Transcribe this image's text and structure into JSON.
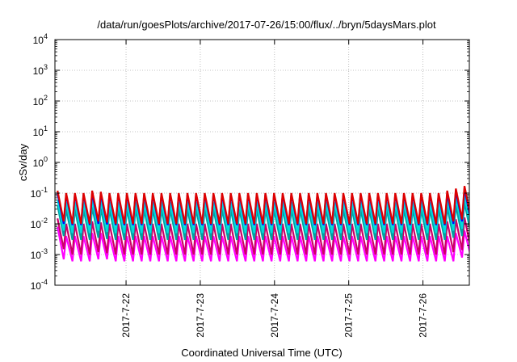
{
  "chart_data": {
    "type": "line",
    "title": "/data/run/goesPlots/archive/2017-07-26/15:00/flux/../bryn/5daysMars.plot",
    "xlabel": "Coordinated Universal Time (UTC)",
    "ylabel": "cSv/day",
    "yscale": "log",
    "ylim": [
      0.0001,
      10000
    ],
    "yticks": [
      {
        "base": "10",
        "exp": "-4"
      },
      {
        "base": "10",
        "exp": "-3"
      },
      {
        "base": "10",
        "exp": "-2"
      },
      {
        "base": "10",
        "exp": "-1"
      },
      {
        "base": "10",
        "exp": "0"
      },
      {
        "base": "10",
        "exp": "1"
      },
      {
        "base": "10",
        "exp": "2"
      },
      {
        "base": "10",
        "exp": "3"
      },
      {
        "base": "10",
        "exp": "4"
      }
    ],
    "xlim": [
      "2017-07-21T01:00",
      "2017-07-26T15:00"
    ],
    "xticks": [
      "2017-7-22",
      "2017-7-23",
      "2017-7-24",
      "2017-7-25",
      "2017-7-26"
    ],
    "grid": true,
    "cycle_hours": 2.8,
    "series": [
      {
        "color": "#ff00ff",
        "peaks": [
          0.008,
          0.004,
          0.004,
          0.004,
          0.005,
          0.005,
          0.004,
          0.004,
          0.004,
          0.004,
          0.004,
          0.004,
          0.004,
          0.004,
          0.004,
          0.004,
          0.004,
          0.004,
          0.004,
          0.004,
          0.004,
          0.004,
          0.004,
          0.004,
          0.004,
          0.004,
          0.004,
          0.004,
          0.004,
          0.004,
          0.004,
          0.004,
          0.004,
          0.004,
          0.004,
          0.004,
          0.004,
          0.004,
          0.004,
          0.004,
          0.004,
          0.004,
          0.004,
          0.004,
          0.004,
          0.004,
          0.005,
          0.006,
          0.006,
          0.005
        ],
        "troughs": [
          0.0007,
          0.0006,
          0.0006,
          0.0006,
          0.0007,
          0.0007,
          0.0006,
          0.0006,
          0.0006,
          0.0006,
          0.0006,
          0.0006,
          0.0006,
          0.0006,
          0.0006,
          0.0006,
          0.0006,
          0.0006,
          0.0006,
          0.0006,
          0.0006,
          0.0006,
          0.0006,
          0.0006,
          0.0006,
          0.0006,
          0.0006,
          0.0006,
          0.0006,
          0.0006,
          0.0006,
          0.0006,
          0.0006,
          0.0006,
          0.0006,
          0.0006,
          0.0006,
          0.0006,
          0.0006,
          0.0006,
          0.0006,
          0.0006,
          0.0006,
          0.0006,
          0.0006,
          0.0006,
          0.0008,
          0.0009,
          0.0009,
          0.0008
        ]
      },
      {
        "color": "#cc0066",
        "peaks": [
          0.015,
          0.01,
          0.01,
          0.01,
          0.012,
          0.011,
          0.01,
          0.01,
          0.01,
          0.01,
          0.01,
          0.01,
          0.01,
          0.01,
          0.01,
          0.01,
          0.01,
          0.01,
          0.01,
          0.01,
          0.01,
          0.01,
          0.01,
          0.01,
          0.01,
          0.01,
          0.01,
          0.01,
          0.01,
          0.01,
          0.01,
          0.01,
          0.01,
          0.01,
          0.01,
          0.01,
          0.01,
          0.01,
          0.01,
          0.01,
          0.01,
          0.01,
          0.01,
          0.01,
          0.01,
          0.012,
          0.014,
          0.016,
          0.015,
          0.012
        ],
        "troughs": [
          0.0015,
          0.001,
          0.001,
          0.001,
          0.0012,
          0.0011,
          0.001,
          0.001,
          0.001,
          0.001,
          0.001,
          0.001,
          0.001,
          0.001,
          0.001,
          0.001,
          0.001,
          0.001,
          0.001,
          0.001,
          0.001,
          0.001,
          0.001,
          0.001,
          0.001,
          0.001,
          0.001,
          0.001,
          0.001,
          0.001,
          0.001,
          0.001,
          0.001,
          0.001,
          0.001,
          0.001,
          0.001,
          0.001,
          0.001,
          0.001,
          0.001,
          0.001,
          0.001,
          0.001,
          0.001,
          0.0012,
          0.0014,
          0.0016,
          0.0015,
          0.0012
        ]
      },
      {
        "color": "#00a0a0",
        "peaks": [
          0.04,
          0.03,
          0.03,
          0.03,
          0.035,
          0.032,
          0.03,
          0.03,
          0.03,
          0.03,
          0.03,
          0.03,
          0.03,
          0.03,
          0.03,
          0.03,
          0.03,
          0.03,
          0.03,
          0.03,
          0.03,
          0.03,
          0.03,
          0.03,
          0.03,
          0.03,
          0.03,
          0.03,
          0.03,
          0.03,
          0.03,
          0.03,
          0.03,
          0.03,
          0.03,
          0.03,
          0.03,
          0.03,
          0.03,
          0.03,
          0.03,
          0.03,
          0.03,
          0.03,
          0.03,
          0.035,
          0.04,
          0.05,
          0.045,
          0.035
        ],
        "troughs": [
          0.004,
          0.003,
          0.003,
          0.003,
          0.0035,
          0.0032,
          0.003,
          0.003,
          0.003,
          0.003,
          0.003,
          0.003,
          0.003,
          0.003,
          0.003,
          0.003,
          0.003,
          0.003,
          0.003,
          0.003,
          0.003,
          0.003,
          0.003,
          0.003,
          0.003,
          0.003,
          0.003,
          0.003,
          0.003,
          0.003,
          0.003,
          0.003,
          0.003,
          0.003,
          0.003,
          0.003,
          0.003,
          0.003,
          0.003,
          0.003,
          0.003,
          0.003,
          0.003,
          0.003,
          0.003,
          0.0035,
          0.004,
          0.005,
          0.0045,
          0.0035
        ]
      },
      {
        "color": "#00dddd",
        "peaks": [
          0.06,
          0.05,
          0.05,
          0.05,
          0.06,
          0.055,
          0.05,
          0.05,
          0.05,
          0.05,
          0.05,
          0.05,
          0.05,
          0.05,
          0.05,
          0.05,
          0.05,
          0.05,
          0.05,
          0.05,
          0.05,
          0.05,
          0.05,
          0.05,
          0.05,
          0.05,
          0.05,
          0.05,
          0.05,
          0.05,
          0.05,
          0.05,
          0.05,
          0.05,
          0.05,
          0.05,
          0.05,
          0.05,
          0.05,
          0.05,
          0.05,
          0.05,
          0.05,
          0.05,
          0.05,
          0.06,
          0.07,
          0.08,
          0.075,
          0.06
        ],
        "troughs": [
          0.006,
          0.005,
          0.005,
          0.005,
          0.006,
          0.0055,
          0.005,
          0.005,
          0.005,
          0.005,
          0.005,
          0.005,
          0.005,
          0.005,
          0.005,
          0.005,
          0.005,
          0.005,
          0.005,
          0.005,
          0.005,
          0.005,
          0.005,
          0.005,
          0.005,
          0.005,
          0.005,
          0.005,
          0.005,
          0.005,
          0.005,
          0.005,
          0.005,
          0.005,
          0.005,
          0.005,
          0.005,
          0.005,
          0.005,
          0.005,
          0.005,
          0.005,
          0.005,
          0.005,
          0.005,
          0.006,
          0.007,
          0.008,
          0.0075,
          0.006
        ]
      },
      {
        "color": "#0000ff",
        "peaks": [
          0.1,
          0.09,
          0.09,
          0.09,
          0.1,
          0.095,
          0.09,
          0.09,
          0.09,
          0.09,
          0.09,
          0.09,
          0.09,
          0.09,
          0.09,
          0.09,
          0.09,
          0.09,
          0.09,
          0.09,
          0.09,
          0.09,
          0.09,
          0.09,
          0.09,
          0.09,
          0.09,
          0.09,
          0.09,
          0.09,
          0.09,
          0.09,
          0.09,
          0.09,
          0.09,
          0.09,
          0.09,
          0.09,
          0.09,
          0.09,
          0.09,
          0.09,
          0.09,
          0.09,
          0.09,
          0.1,
          0.12,
          0.14,
          0.13,
          0.1
        ],
        "troughs": [
          0.01,
          0.009,
          0.009,
          0.009,
          0.01,
          0.0095,
          0.009,
          0.009,
          0.009,
          0.009,
          0.009,
          0.009,
          0.009,
          0.009,
          0.009,
          0.009,
          0.009,
          0.009,
          0.009,
          0.009,
          0.009,
          0.009,
          0.009,
          0.009,
          0.009,
          0.009,
          0.009,
          0.009,
          0.009,
          0.009,
          0.009,
          0.009,
          0.009,
          0.009,
          0.009,
          0.009,
          0.009,
          0.009,
          0.009,
          0.009,
          0.009,
          0.009,
          0.009,
          0.009,
          0.009,
          0.01,
          0.012,
          0.014,
          0.013,
          0.01
        ]
      },
      {
        "color": "#dd0000",
        "peaks": [
          0.12,
          0.1,
          0.1,
          0.1,
          0.12,
          0.11,
          0.1,
          0.1,
          0.1,
          0.1,
          0.1,
          0.1,
          0.1,
          0.1,
          0.1,
          0.1,
          0.1,
          0.1,
          0.1,
          0.1,
          0.1,
          0.1,
          0.1,
          0.1,
          0.1,
          0.1,
          0.1,
          0.1,
          0.1,
          0.1,
          0.1,
          0.1,
          0.1,
          0.1,
          0.1,
          0.1,
          0.1,
          0.1,
          0.1,
          0.1,
          0.1,
          0.1,
          0.1,
          0.1,
          0.1,
          0.12,
          0.14,
          0.17,
          0.15,
          0.12
        ],
        "troughs": [
          0.012,
          0.01,
          0.01,
          0.01,
          0.012,
          0.011,
          0.01,
          0.01,
          0.01,
          0.01,
          0.01,
          0.01,
          0.01,
          0.01,
          0.01,
          0.01,
          0.01,
          0.01,
          0.01,
          0.01,
          0.01,
          0.01,
          0.01,
          0.01,
          0.01,
          0.01,
          0.01,
          0.01,
          0.01,
          0.01,
          0.01,
          0.01,
          0.01,
          0.01,
          0.01,
          0.01,
          0.01,
          0.01,
          0.01,
          0.01,
          0.01,
          0.01,
          0.01,
          0.01,
          0.01,
          0.012,
          0.014,
          0.017,
          0.015,
          0.012
        ]
      }
    ]
  }
}
